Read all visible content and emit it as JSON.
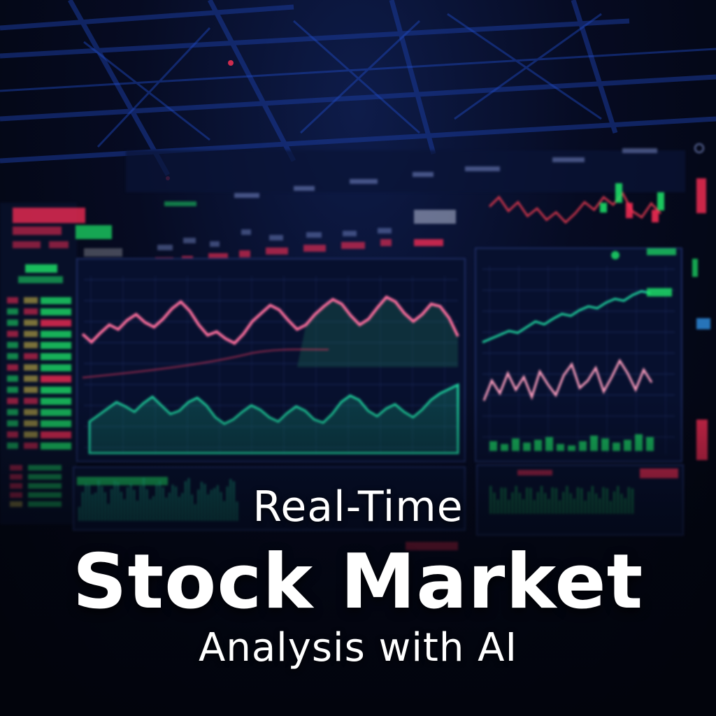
{
  "headline": {
    "line1": "Real-Time",
    "line2": "Stock Market",
    "line3": "Analysis with AI"
  },
  "colors": {
    "up": "#1ee86a",
    "down": "#ff2e55",
    "teal": "#1fd6a0",
    "pink": "#ff6f9e",
    "panel": "#0a1230",
    "grid": "#1e2d63",
    "accent": "#2a4fd6"
  },
  "series": {
    "main_price": [
      62,
      55,
      63,
      70,
      66,
      74,
      79,
      72,
      68,
      75,
      84,
      90,
      82,
      70,
      61,
      64,
      58,
      54,
      62,
      73,
      80,
      87,
      83,
      74,
      66,
      70,
      79,
      86,
      92,
      88,
      78,
      70,
      75,
      85,
      94,
      90,
      80,
      73,
      79,
      88,
      86,
      76,
      60
    ],
    "main_area": [
      40,
      46,
      52,
      58,
      54,
      49,
      57,
      63,
      55,
      47,
      50,
      58,
      62,
      55,
      44,
      38,
      42,
      49,
      55,
      51,
      44,
      40,
      48,
      54,
      50,
      42,
      39,
      47,
      58,
      64,
      60,
      50,
      45,
      52,
      56,
      49,
      44,
      51,
      60,
      66,
      70,
      74
    ],
    "right_upper": [
      30,
      34,
      38,
      42,
      40,
      46,
      52,
      49,
      55,
      60,
      58,
      64,
      68,
      66,
      72,
      76,
      74,
      80,
      84,
      82
    ],
    "right_lower": [
      40,
      62,
      48,
      70,
      52,
      66,
      44,
      72,
      58,
      46,
      68,
      80,
      54,
      62,
      76,
      50,
      66,
      84,
      70,
      52,
      74,
      60
    ],
    "top_right": [
      55,
      70,
      48,
      62,
      40,
      52,
      34,
      46,
      30,
      44,
      62,
      50,
      70,
      58,
      76,
      48,
      38,
      60,
      44
    ]
  }
}
